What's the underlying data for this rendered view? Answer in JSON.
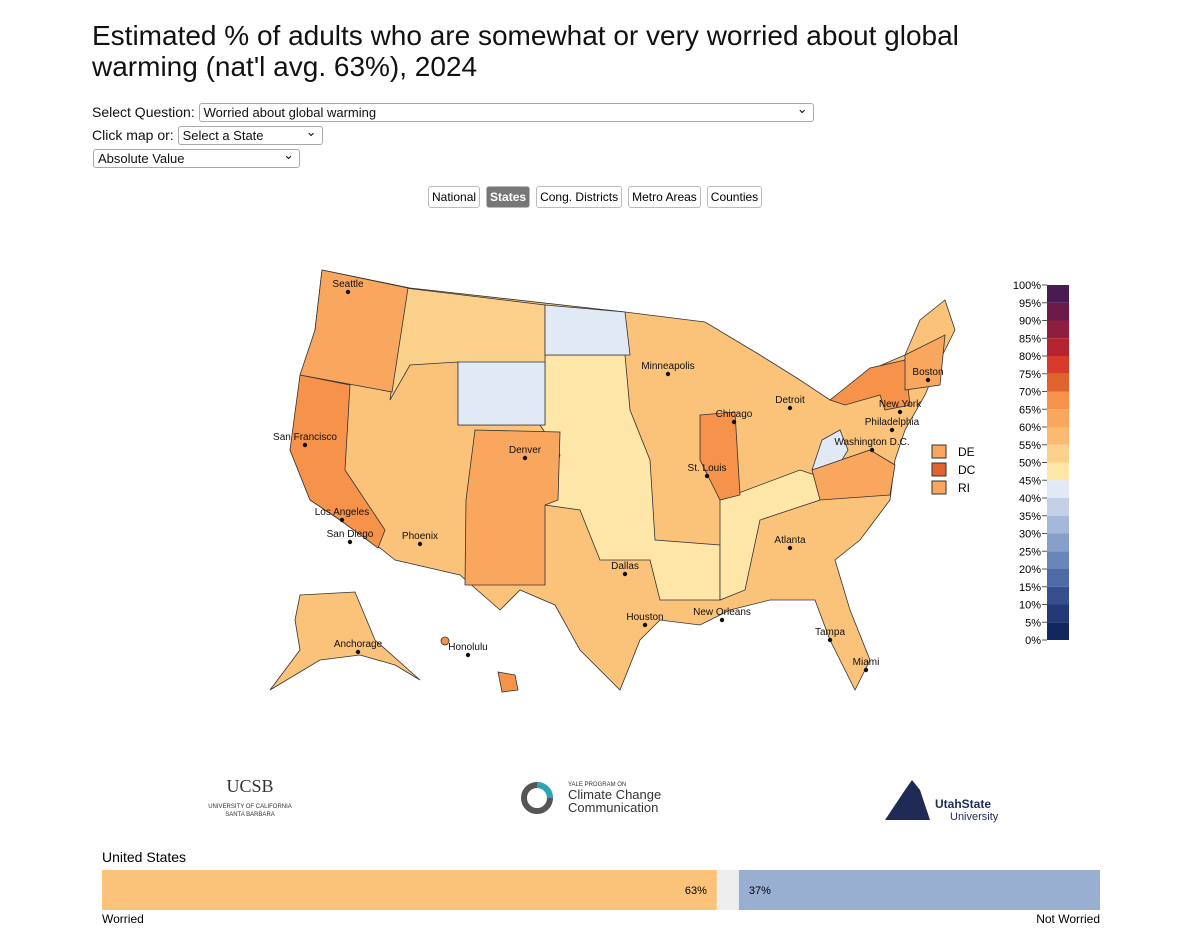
{
  "header": {
    "title_line1": "Estimated % of adults who are somewhat or very worried about global",
    "title_line2": "warming (nat'l avg. 63%), 2024"
  },
  "controls": {
    "question_label": "Select Question:",
    "question_value": "Worried about global warming",
    "click_label": "Click map or:",
    "state_select": "Select a State",
    "mode_select": "Absolute Value"
  },
  "tabs": {
    "items": [
      "National",
      "States",
      "Cong. Districts",
      "Metro Areas",
      "Counties"
    ],
    "active": 1
  },
  "map": {
    "cities": [
      "Seattle",
      "San Francisco",
      "Los Angeles",
      "San Diego",
      "Phoenix",
      "Denver",
      "Dallas",
      "Houston",
      "St. Louis",
      "Minneapolis",
      "Chicago",
      "Detroit",
      "New Orleans",
      "Atlanta",
      "Tampa",
      "Miami",
      "Boston",
      "New York",
      "Philadelphia",
      "Washington D.C.",
      "Anchorage",
      "Honolulu"
    ],
    "small_states": [
      {
        "name": "DE",
        "color": "#f9a65e"
      },
      {
        "name": "DC",
        "color": "#e0622e"
      },
      {
        "name": "RI",
        "color": "#f9a65e"
      }
    ]
  },
  "legend": {
    "ticks": [
      {
        "value": 100,
        "label": "100%"
      },
      {
        "value": 95,
        "label": "95%"
      },
      {
        "value": 90,
        "label": "90%"
      },
      {
        "value": 85,
        "label": "85%"
      },
      {
        "value": 80,
        "label": "80%"
      },
      {
        "value": 75,
        "label": "75%"
      },
      {
        "value": 70,
        "label": "70%"
      },
      {
        "value": 65,
        "label": "65%"
      },
      {
        "value": 60,
        "label": "60%"
      },
      {
        "value": 55,
        "label": "55%"
      },
      {
        "value": 50,
        "label": "50%"
      },
      {
        "value": 45,
        "label": "45%"
      },
      {
        "value": 40,
        "label": "40%"
      },
      {
        "value": 35,
        "label": "35%"
      },
      {
        "value": 30,
        "label": "30%"
      },
      {
        "value": 25,
        "label": "25%"
      },
      {
        "value": 20,
        "label": "20%"
      },
      {
        "value": 15,
        "label": "15%"
      },
      {
        "value": 10,
        "label": "10%"
      },
      {
        "value": 5,
        "label": "5%"
      },
      {
        "value": 0,
        "label": "0%"
      }
    ],
    "colors": [
      "#4a1a52",
      "#6b1a4a",
      "#8f1d3e",
      "#b52330",
      "#d83a2c",
      "#e0622e",
      "#f6924a",
      "#f9a65e",
      "#fbba70",
      "#fbd08a",
      "#fde6a8",
      "#e1e9f4",
      "#c3d0e6",
      "#a6b8d9",
      "#889fcb",
      "#6a85ba",
      "#4e6ba7",
      "#374f8f",
      "#243a78",
      "#142660"
    ]
  },
  "logos": {
    "ucsb": "UCSB",
    "ucsb_sub1": "UNIVERSITY OF CALIFORNIA",
    "ucsb_sub2": "SANTA BARBARA",
    "yale_top": "YALE PROGRAM ON",
    "yale_1": "Climate Change",
    "yale_2": "Communication",
    "usu_1": "UtahState",
    "usu_2": "University"
  },
  "summary": {
    "title": "United States",
    "segments": [
      {
        "name": "Worried",
        "value": 63,
        "label": "63%",
        "color": "#fbc27a"
      },
      {
        "name": "Not Worried",
        "value": 37,
        "label": "37%",
        "color": "#98afd2"
      }
    ]
  }
}
